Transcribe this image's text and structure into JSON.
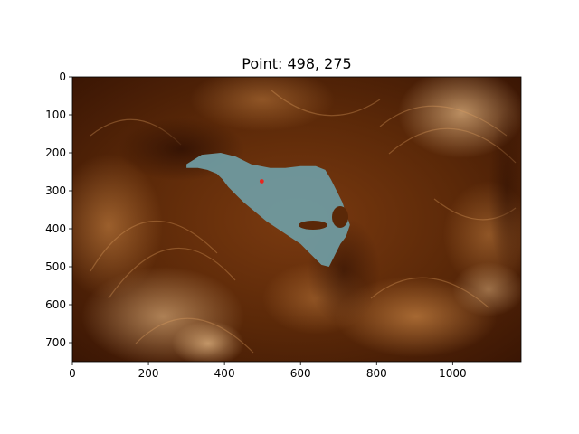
{
  "figure": {
    "title": "Point: 498, 275"
  },
  "chart_data": {
    "type": "image",
    "title": "Point: 498, 275",
    "xlabel": "",
    "ylabel": "",
    "xlim": [
      0,
      1180
    ],
    "ylim": [
      750,
      0
    ],
    "x_ticks": [
      0,
      200,
      400,
      600,
      800,
      1000
    ],
    "y_ticks": [
      0,
      100,
      200,
      300,
      400,
      500,
      600,
      700
    ],
    "colormap": "sdoaia171-like copper/brown",
    "overlay": {
      "name": "selected region",
      "color": "#6f9aa0",
      "outline_data": [
        [
          300,
          230
        ],
        [
          340,
          205
        ],
        [
          390,
          200
        ],
        [
          430,
          210
        ],
        [
          470,
          230
        ],
        [
          520,
          240
        ],
        [
          560,
          240
        ],
        [
          600,
          235
        ],
        [
          640,
          235
        ],
        [
          665,
          245
        ],
        [
          680,
          270
        ],
        [
          695,
          300
        ],
        [
          710,
          330
        ],
        [
          720,
          360
        ],
        [
          730,
          390
        ],
        [
          720,
          420
        ],
        [
          705,
          440
        ],
        [
          690,
          470
        ],
        [
          675,
          500
        ],
        [
          655,
          495
        ],
        [
          640,
          480
        ],
        [
          620,
          460
        ],
        [
          600,
          440
        ],
        [
          570,
          420
        ],
        [
          540,
          400
        ],
        [
          510,
          380
        ],
        [
          480,
          355
        ],
        [
          450,
          330
        ],
        [
          430,
          310
        ],
        [
          410,
          290
        ],
        [
          395,
          270
        ],
        [
          380,
          255
        ],
        [
          355,
          245
        ],
        [
          330,
          240
        ],
        [
          300,
          240
        ]
      ]
    },
    "marker": {
      "x": 498,
      "y": 275,
      "color": "#e8261f"
    }
  }
}
